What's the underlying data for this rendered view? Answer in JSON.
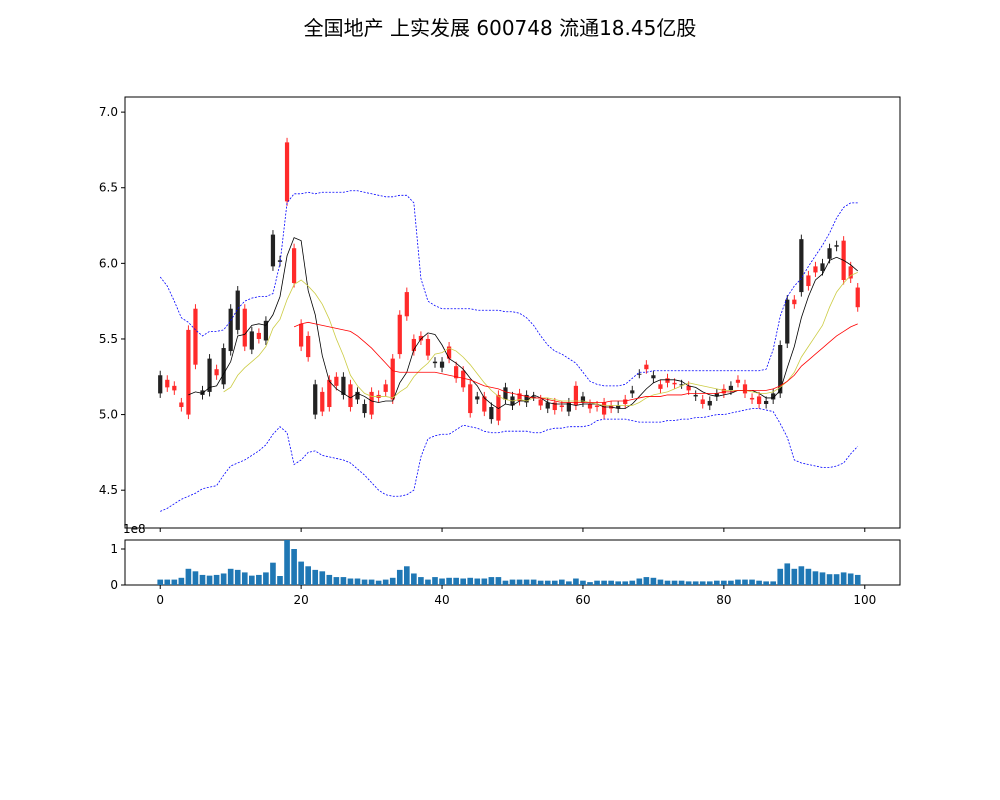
{
  "title": "全国地产 上实发展 600748 流通18.45亿股",
  "chart_data": [
    {
      "type": "candlestick",
      "panel": "price",
      "xlim": [
        -5,
        105
      ],
      "ylim": [
        4.25,
        7.1
      ],
      "yticks": [
        4.5,
        5.0,
        5.5,
        6.0,
        6.5,
        7.0
      ],
      "ytick_labels": [
        "4.5",
        "5.0",
        "5.5",
        "6.0",
        "6.5",
        "7.0"
      ],
      "x": [
        0,
        1,
        2,
        3,
        4,
        5,
        6,
        7,
        8,
        9,
        10,
        11,
        12,
        13,
        14,
        15,
        16,
        17,
        18,
        19,
        20,
        21,
        22,
        23,
        24,
        25,
        26,
        27,
        28,
        29,
        30,
        31,
        32,
        33,
        34,
        35,
        36,
        37,
        38,
        39,
        40,
        41,
        42,
        43,
        44,
        45,
        46,
        47,
        48,
        49,
        50,
        51,
        52,
        53,
        54,
        55,
        56,
        57,
        58,
        59,
        60,
        61,
        62,
        63,
        64,
        65,
        66,
        67,
        68,
        69,
        70,
        71,
        72,
        73,
        74,
        75,
        76,
        77,
        78,
        79,
        80,
        81,
        82,
        83,
        84,
        85,
        86,
        87,
        88,
        89,
        90,
        91,
        92,
        93,
        94,
        95,
        96,
        97,
        98,
        99
      ],
      "open": [
        5.14,
        5.23,
        5.19,
        5.08,
        5.56,
        5.7,
        5.13,
        5.15,
        5.3,
        5.2,
        5.42,
        5.56,
        5.7,
        5.43,
        5.54,
        5.49,
        5.98,
        6.01,
        6.8,
        6.1,
        5.6,
        5.52,
        5.0,
        5.15,
        5.23,
        5.25,
        5.13,
        5.2,
        5.1,
        5.01,
        5.15,
        5.13,
        5.2,
        5.37,
        5.66,
        5.81,
        5.5,
        5.52,
        5.5,
        5.34,
        5.31,
        5.45,
        5.32,
        5.29,
        5.2,
        5.1,
        5.12,
        4.97,
        5.13,
        5.1,
        5.06,
        5.14,
        5.08,
        5.12,
        5.1,
        5.04,
        5.08,
        5.06,
        5.02,
        5.19,
        5.08,
        5.07,
        5.06,
        5.08,
        5.06,
        5.04,
        5.1,
        5.14,
        5.27,
        5.33,
        5.24,
        5.2,
        5.24,
        5.21,
        5.2,
        5.19,
        5.12,
        5.1,
        5.06,
        5.12,
        5.17,
        5.16,
        5.23,
        5.2,
        5.11,
        5.12,
        5.07,
        5.1,
        5.14,
        5.47,
        5.76,
        5.81,
        5.92,
        5.98,
        5.95,
        6.03,
        6.11,
        6.15,
        5.98,
        5.84
      ],
      "close": [
        5.26,
        5.18,
        5.16,
        5.05,
        5.0,
        5.33,
        5.16,
        5.37,
        5.26,
        5.44,
        5.7,
        5.82,
        5.45,
        5.55,
        5.5,
        5.62,
        6.19,
        6.02,
        6.41,
        5.87,
        5.45,
        5.38,
        5.2,
        5.02,
        5.05,
        5.19,
        5.25,
        5.05,
        5.15,
        5.07,
        5.0,
        5.11,
        5.15,
        5.1,
        5.4,
        5.65,
        5.42,
        5.49,
        5.39,
        5.35,
        5.35,
        5.37,
        5.24,
        5.18,
        5.01,
        5.12,
        5.02,
        5.05,
        4.96,
        5.18,
        5.12,
        5.09,
        5.13,
        5.12,
        5.06,
        5.08,
        5.03,
        5.05,
        5.08,
        5.06,
        5.12,
        5.04,
        5.05,
        5.0,
        5.04,
        5.06,
        5.07,
        5.16,
        5.27,
        5.3,
        5.26,
        5.17,
        5.21,
        5.2,
        5.2,
        5.16,
        5.13,
        5.07,
        5.09,
        5.14,
        5.14,
        5.19,
        5.21,
        5.14,
        5.1,
        5.07,
        5.09,
        5.14,
        5.46,
        5.76,
        5.73,
        6.16,
        5.85,
        5.94,
        6.0,
        6.1,
        6.12,
        5.89,
        5.9,
        5.71
      ]
    },
    {
      "type": "line",
      "panel": "price",
      "series": [
        {
          "color": "#000000",
          "values": [
            null,
            null,
            null,
            null,
            5.13,
            5.15,
            5.14,
            5.18,
            5.19,
            5.27,
            5.35,
            5.52,
            5.53,
            5.59,
            5.6,
            5.59,
            5.66,
            5.78,
            6.05,
            6.17,
            6.15,
            5.82,
            5.66,
            5.39,
            5.22,
            5.17,
            5.14,
            5.11,
            5.14,
            5.12,
            5.09,
            5.08,
            5.09,
            5.09,
            5.21,
            5.28,
            5.43,
            5.5,
            5.54,
            5.53,
            5.46,
            5.37,
            5.34,
            5.3,
            5.24,
            5.19,
            5.11,
            5.07,
            5.04,
            5.07,
            5.06,
            5.09,
            5.09,
            5.13,
            5.11,
            5.08,
            5.07,
            5.07,
            5.07,
            5.06,
            5.07,
            5.07,
            5.07,
            5.05,
            5.05,
            5.04,
            5.04,
            5.07,
            5.12,
            5.17,
            5.21,
            5.23,
            5.23,
            5.23,
            5.22,
            5.19,
            5.18,
            5.15,
            5.13,
            5.12,
            5.13,
            5.14,
            5.16,
            5.16,
            5.16,
            5.14,
            5.11,
            5.11,
            5.16,
            5.31,
            5.45,
            5.64,
            5.78,
            5.89,
            5.93,
            6.02,
            6.04,
            6.02,
            5.99,
            5.95
          ]
        },
        {
          "color": "#cccc44",
          "values": [
            null,
            null,
            null,
            null,
            null,
            null,
            null,
            null,
            null,
            5.15,
            5.18,
            5.26,
            5.31,
            5.35,
            5.39,
            5.45,
            5.57,
            5.63,
            5.76,
            5.86,
            5.89,
            5.85,
            5.8,
            5.73,
            5.63,
            5.5,
            5.39,
            5.26,
            5.19,
            5.14,
            5.12,
            5.12,
            5.12,
            5.11,
            5.15,
            5.18,
            5.25,
            5.3,
            5.34,
            5.4,
            5.41,
            5.44,
            5.42,
            5.38,
            5.33,
            5.27,
            5.21,
            5.16,
            5.12,
            5.1,
            5.09,
            5.1,
            5.09,
            5.11,
            5.11,
            5.11,
            5.1,
            5.09,
            5.09,
            5.09,
            5.09,
            5.08,
            5.07,
            5.06,
            5.06,
            5.06,
            5.06,
            5.06,
            5.08,
            5.11,
            5.13,
            5.14,
            5.15,
            5.17,
            5.19,
            5.21,
            5.2,
            5.19,
            5.18,
            5.17,
            5.16,
            5.16,
            5.16,
            5.16,
            5.15,
            5.14,
            5.14,
            5.15,
            5.18,
            5.22,
            5.28,
            5.38,
            5.45,
            5.52,
            5.59,
            5.71,
            5.81,
            5.87,
            5.92,
            5.94
          ]
        },
        {
          "color": "#ff0000",
          "values": [
            null,
            null,
            null,
            null,
            null,
            null,
            null,
            null,
            null,
            null,
            null,
            null,
            null,
            null,
            null,
            null,
            null,
            null,
            null,
            5.58,
            5.6,
            5.61,
            5.6,
            5.59,
            5.58,
            5.57,
            5.56,
            5.55,
            5.52,
            5.48,
            5.44,
            5.39,
            5.34,
            5.29,
            5.28,
            5.28,
            5.28,
            5.28,
            5.28,
            5.28,
            5.27,
            5.26,
            5.25,
            5.24,
            5.23,
            5.21,
            5.19,
            5.18,
            5.17,
            5.15,
            5.14,
            5.13,
            5.12,
            5.11,
            5.11,
            5.1,
            5.09,
            5.08,
            5.08,
            5.08,
            5.08,
            5.08,
            5.08,
            5.08,
            5.09,
            5.09,
            5.09,
            5.1,
            5.11,
            5.12,
            5.12,
            5.12,
            5.13,
            5.13,
            5.13,
            5.14,
            5.14,
            5.14,
            5.14,
            5.14,
            5.15,
            5.15,
            5.16,
            5.16,
            5.16,
            5.16,
            5.16,
            5.17,
            5.19,
            5.22,
            5.26,
            5.32,
            5.36,
            5.4,
            5.44,
            5.48,
            5.52,
            5.55,
            5.58,
            5.6
          ]
        },
        {
          "color": "#0000ff",
          "style": "dashed",
          "values": [
            5.91,
            5.85,
            5.75,
            5.64,
            5.61,
            5.56,
            5.52,
            5.55,
            5.55,
            5.56,
            5.62,
            5.7,
            5.75,
            5.77,
            5.78,
            5.78,
            5.8,
            6.0,
            6.4,
            6.46,
            6.46,
            6.47,
            6.46,
            6.47,
            6.47,
            6.47,
            6.47,
            6.48,
            6.48,
            6.47,
            6.46,
            6.45,
            6.44,
            6.44,
            6.45,
            6.45,
            6.4,
            5.9,
            5.75,
            5.72,
            5.7,
            5.7,
            5.7,
            5.7,
            5.7,
            5.69,
            5.69,
            5.69,
            5.69,
            5.68,
            5.68,
            5.67,
            5.64,
            5.59,
            5.52,
            5.46,
            5.42,
            5.4,
            5.37,
            5.34,
            5.28,
            5.22,
            5.2,
            5.19,
            5.19,
            5.19,
            5.2,
            5.24,
            5.28,
            5.28,
            5.29,
            5.29,
            5.29,
            5.29,
            5.29,
            5.29,
            5.29,
            5.29,
            5.29,
            5.29,
            5.29,
            5.29,
            5.29,
            5.29,
            5.29,
            5.29,
            5.3,
            5.43,
            5.65,
            5.78,
            5.85,
            5.9,
            5.98,
            6.05,
            6.12,
            6.2,
            6.3,
            6.37,
            6.4,
            6.4
          ]
        },
        {
          "color": "#0000ff",
          "style": "dashed",
          "values": [
            4.36,
            4.38,
            4.41,
            4.44,
            4.46,
            4.48,
            4.51,
            4.52,
            4.53,
            4.6,
            4.66,
            4.68,
            4.7,
            4.73,
            4.76,
            4.8,
            4.87,
            4.92,
            4.88,
            4.67,
            4.7,
            4.75,
            4.76,
            4.73,
            4.72,
            4.71,
            4.7,
            4.68,
            4.64,
            4.6,
            4.55,
            4.5,
            4.47,
            4.46,
            4.46,
            4.47,
            4.5,
            4.72,
            4.84,
            4.86,
            4.87,
            4.87,
            4.9,
            4.93,
            4.92,
            4.91,
            4.89,
            4.88,
            4.88,
            4.89,
            4.89,
            4.89,
            4.89,
            4.88,
            4.88,
            4.9,
            4.91,
            4.91,
            4.92,
            4.92,
            4.92,
            4.93,
            4.96,
            4.97,
            4.97,
            4.97,
            4.97,
            4.96,
            4.95,
            4.95,
            4.95,
            4.95,
            4.96,
            4.96,
            4.97,
            4.97,
            4.98,
            4.98,
            4.99,
            5.0,
            5.0,
            5.01,
            5.02,
            5.03,
            5.04,
            5.04,
            5.03,
            5.02,
            4.94,
            4.85,
            4.7,
            4.68,
            4.67,
            4.66,
            4.65,
            4.65,
            4.66,
            4.68,
            4.74,
            4.79
          ]
        }
      ]
    },
    {
      "type": "bar",
      "panel": "volume",
      "ylabel_offset": "1e8",
      "xlim": [
        -5,
        105
      ],
      "ylim": [
        0,
        1.25
      ],
      "yticks": [
        0,
        1
      ],
      "ytick_labels": [
        "0",
        "1"
      ],
      "xticks": [
        0,
        20,
        40,
        60,
        80,
        100
      ],
      "xtick_labels": [
        "0",
        "20",
        "40",
        "60",
        "80",
        "100"
      ],
      "color": "#1f77b4",
      "values": [
        0.15,
        0.15,
        0.15,
        0.2,
        0.45,
        0.38,
        0.28,
        0.26,
        0.28,
        0.32,
        0.45,
        0.42,
        0.35,
        0.26,
        0.28,
        0.35,
        0.62,
        0.25,
        1.25,
        1.0,
        0.65,
        0.52,
        0.42,
        0.38,
        0.28,
        0.22,
        0.22,
        0.18,
        0.18,
        0.15,
        0.15,
        0.12,
        0.15,
        0.2,
        0.42,
        0.52,
        0.32,
        0.22,
        0.15,
        0.22,
        0.18,
        0.2,
        0.2,
        0.18,
        0.2,
        0.18,
        0.18,
        0.22,
        0.22,
        0.12,
        0.15,
        0.15,
        0.15,
        0.15,
        0.12,
        0.12,
        0.12,
        0.15,
        0.1,
        0.18,
        0.12,
        0.08,
        0.12,
        0.12,
        0.12,
        0.1,
        0.1,
        0.12,
        0.18,
        0.22,
        0.2,
        0.15,
        0.12,
        0.12,
        0.12,
        0.1,
        0.1,
        0.1,
        0.1,
        0.12,
        0.12,
        0.12,
        0.15,
        0.15,
        0.15,
        0.12,
        0.1,
        0.1,
        0.45,
        0.6,
        0.45,
        0.52,
        0.45,
        0.38,
        0.35,
        0.3,
        0.3,
        0.35,
        0.32,
        0.28
      ]
    }
  ]
}
